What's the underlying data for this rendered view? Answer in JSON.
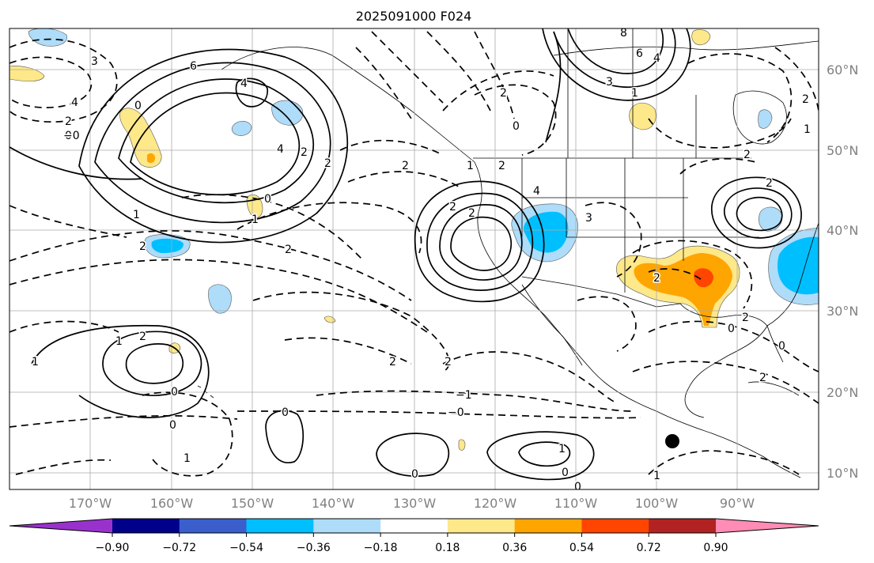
{
  "title": "2025091000 F024",
  "lat_labels": [
    "60°N",
    "50°N",
    "40°N",
    "30°N",
    "20°N",
    "10°N"
  ],
  "lon_labels": [
    "170°W",
    "160°W",
    "150°W",
    "140°W",
    "130°W",
    "120°W",
    "110°W",
    "100°W",
    "90°W"
  ],
  "colorbar": {
    "tick_labels": [
      "−0.90",
      "−0.72",
      "−0.54",
      "−0.36",
      "−0.18",
      "0.18",
      "0.36",
      "0.54",
      "0.72",
      "0.90"
    ],
    "colors": [
      "#9932cc",
      "#00008b",
      "#3a5fcd",
      "#00bfff",
      "#aedcf9",
      "#ffffff",
      "#fde88a",
      "#ffa500",
      "#ff4500",
      "#b22222",
      "#ff8cb4"
    ]
  },
  "contour_labels": [
    "3",
    "6",
    "4",
    "4",
    "2",
    "0",
    "2",
    "2",
    "1",
    "2",
    "2",
    "2",
    "0",
    "2",
    "1",
    "2",
    "2",
    "4",
    "3",
    "8",
    "6",
    "4",
    "3",
    "1",
    "2",
    "2",
    "2",
    "2",
    "4",
    "0",
    "2",
    "2",
    "1",
    "2",
    "2",
    "0",
    "0",
    "0",
    "1",
    "0",
    "0",
    "1",
    "1",
    "−1",
    "−0",
    "0",
    "−0",
    "1",
    "0",
    "1",
    "1",
    "2",
    "0",
    "2",
    "0"
  ],
  "colors": {
    "positive_light": "#fde88a",
    "positive_mid": "#ffa500",
    "positive_high": "#ff4500",
    "negative_light": "#aedcf9",
    "negative_mid": "#00bfff",
    "negative_deep": "#3a5fcd",
    "grid": "#aaaaaa",
    "contour": "#000000"
  }
}
